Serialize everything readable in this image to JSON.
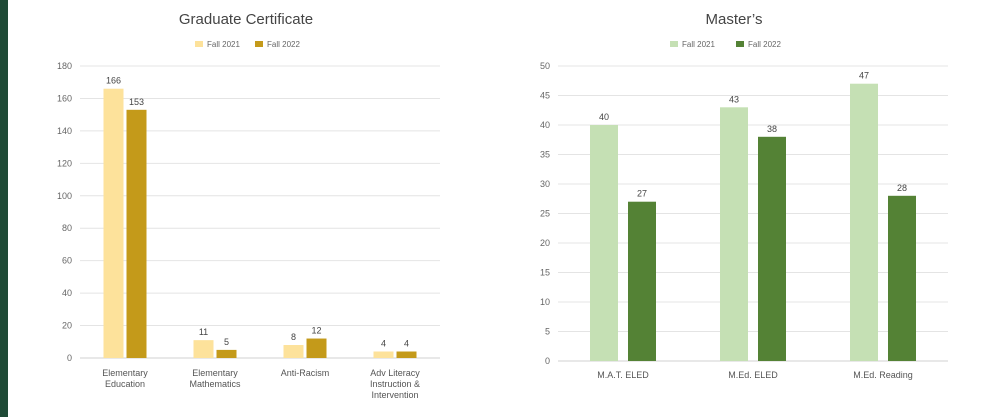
{
  "chart_data": [
    {
      "type": "bar",
      "title": "Graduate Certificate",
      "categories": [
        [
          "Elementary",
          "Education"
        ],
        [
          "Elementary",
          "Mathematics"
        ],
        [
          "Anti-Racism"
        ],
        [
          "Adv Literacy",
          "Instruction &",
          "Intervention"
        ]
      ],
      "series": [
        {
          "name": "Fall 2021",
          "values": [
            166,
            11,
            8,
            4
          ],
          "color": "#fde29b"
        },
        {
          "name": "Fall 2022",
          "values": [
            153,
            5,
            12,
            4
          ],
          "color": "#c49a1a"
        }
      ],
      "ylim": [
        0,
        180
      ],
      "yticks": [
        0,
        20,
        40,
        60,
        80,
        100,
        120,
        140,
        160,
        180
      ],
      "legend": "top",
      "grid": true,
      "xlabel": "",
      "ylabel": ""
    },
    {
      "type": "bar",
      "title": "Master’s",
      "categories": [
        [
          "M.A.T. ELED"
        ],
        [
          "M.Ed. ELED"
        ],
        [
          "M.Ed. Reading"
        ]
      ],
      "series": [
        {
          "name": "Fall 2021",
          "values": [
            40,
            43,
            47
          ],
          "color": "#c5e0b4"
        },
        {
          "name": "Fall 2022",
          "values": [
            27,
            38,
            28
          ],
          "color": "#548235"
        }
      ],
      "ylim": [
        0,
        50
      ],
      "yticks": [
        0,
        5,
        10,
        15,
        20,
        25,
        30,
        35,
        40,
        45,
        50
      ],
      "legend": "top",
      "grid": true,
      "xlabel": "",
      "ylabel": ""
    }
  ]
}
